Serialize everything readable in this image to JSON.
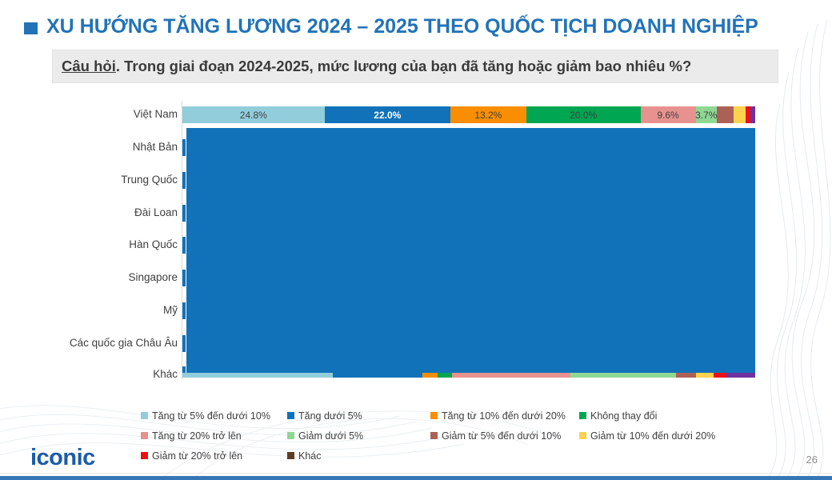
{
  "slide": {
    "title": "XU HƯỚNG TĂNG LƯƠNG 2024 – 2025 THEO QUỐC TỊCH DOANH NGHIỆP",
    "question_label": "Câu hỏi",
    "question_rest": ". Trong giai đoạn 2024-2025, mức lương của bạn đã tăng hoặc giảm bao nhiêu %?",
    "logo_text": "iconic",
    "page_number": "26",
    "accent_blue": "#2173B8"
  },
  "chart_data": {
    "type": "bar",
    "variant": "100%-stacked-horizontal",
    "categories": [
      "Việt Nam",
      "Nhật Bản",
      "Trung Quốc",
      "Đài Loan",
      "Hàn Quốc",
      "Singapore",
      "Mỹ",
      "Các quốc gia Châu Âu",
      "Khác"
    ],
    "legend_position": "bottom",
    "note": "Only the Việt Nam row is readable; rows 2-9 are obscured by a solid blue rectangle in the source image, with a thin multicolor strip of the last row visible at its bottom edge.",
    "overlay_color": "#1172BA",
    "legend": [
      {
        "label": "Tăng từ 5% đến dưới 10%",
        "color": "#92CDDC"
      },
      {
        "label": "Tăng dưới 5%",
        "color": "#1172BA"
      },
      {
        "label": "Tăng từ 10% đến dưới 20%",
        "color": "#F98E00"
      },
      {
        "label": "Không thay đổi",
        "color": "#00A651"
      },
      {
        "label": "Tăng từ 20% trở lên",
        "color": "#E8928F"
      },
      {
        "label": "Giảm dưới 5%",
        "color": "#90D793"
      },
      {
        "label": "Giảm từ 5% đến dưới 10%",
        "color": "#AC6157"
      },
      {
        "label": "Giảm từ 10% đến dưới 20%",
        "color": "#FDD24C"
      },
      {
        "label": "Giảm từ 20% trở lên",
        "color": "#EE1111"
      },
      {
        "label": "Khác",
        "color": "#5F3C23"
      }
    ],
    "viet_nam_segments": [
      {
        "value": 24.8,
        "label": "24.8%",
        "color": "#92CDDC",
        "label_color": "#404040",
        "bold": false
      },
      {
        "value": 22.0,
        "label": "22.0%",
        "color": "#1172BA",
        "label_color": "#FFFFFF",
        "bold": true
      },
      {
        "value": 13.2,
        "label": "13.2%",
        "color": "#F98E00",
        "label_color": "#404040",
        "bold": false
      },
      {
        "value": 20.0,
        "label": "20.0%",
        "color": "#00A651",
        "label_color": "#404040",
        "bold": false
      },
      {
        "value": 9.6,
        "label": "9.6%",
        "color": "#E8928F",
        "label_color": "#404040",
        "bold": false
      },
      {
        "value": 3.7,
        "label": "3.7%",
        "color": "#90D793",
        "label_color": "#404040",
        "bold": false
      },
      {
        "value": 2.9,
        "label": "",
        "color": "#AC6157",
        "label_color": "#404040",
        "bold": false
      },
      {
        "value": 2.2,
        "label": "",
        "color": "#FDD24C",
        "label_color": "#404040",
        "bold": false
      },
      {
        "value": 0.8,
        "label": "",
        "color": "#EE1111",
        "label_color": "#404040",
        "bold": false
      },
      {
        "value": 0.8,
        "label": "",
        "color": "#7030A0",
        "label_color": "#404040",
        "bold": false
      }
    ],
    "khac_row_strip": [
      {
        "color": "#92CDDC",
        "pct": 26.3
      },
      {
        "color": "#1172BA",
        "pct": 15.6
      },
      {
        "color": "#F98E00",
        "pct": 2.7
      },
      {
        "color": "#00A651",
        "pct": 2.5
      },
      {
        "color": "#E8928F",
        "pct": 20.7
      },
      {
        "color": "#90D793",
        "pct": 18.4
      },
      {
        "color": "#AC6157",
        "pct": 3.5
      },
      {
        "color": "#FDD24C",
        "pct": 3.1
      },
      {
        "color": "#EE1111",
        "pct": 2.2
      },
      {
        "color": "#7030A0",
        "pct": 5.0
      }
    ]
  }
}
